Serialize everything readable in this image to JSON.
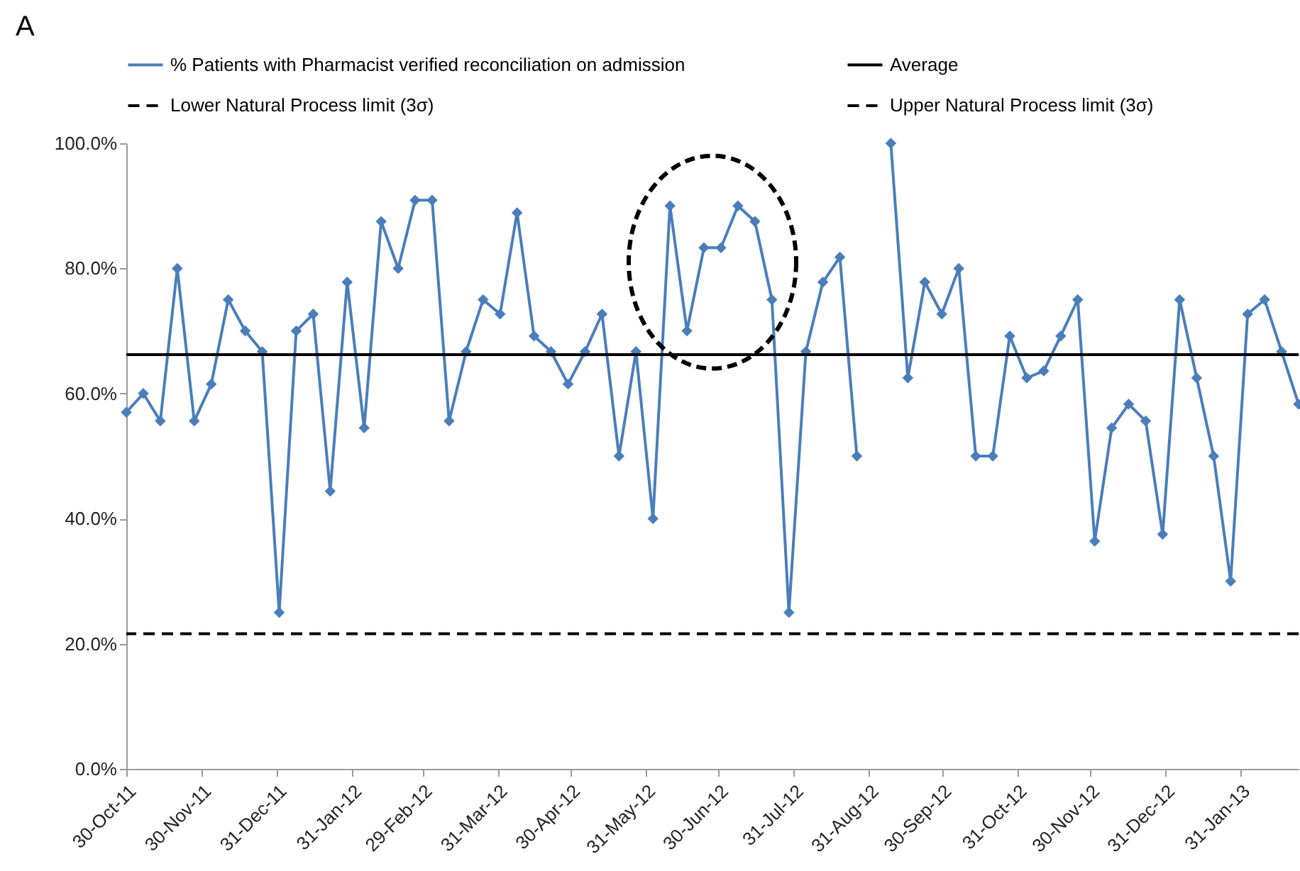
{
  "chart_data": {
    "type": "line",
    "annotations": [
      "A"
    ],
    "x": [
      "2011-10-30",
      "2011-11-06",
      "2011-11-13",
      "2011-11-20",
      "2011-11-27",
      "2011-12-04",
      "2011-12-11",
      "2011-12-18",
      "2011-12-25",
      "2012-01-01",
      "2012-01-08",
      "2012-01-15",
      "2012-01-22",
      "2012-01-29",
      "2012-02-05",
      "2012-02-12",
      "2012-02-19",
      "2012-02-26",
      "2012-03-04",
      "2012-03-11",
      "2012-03-18",
      "2012-03-25",
      "2012-04-01",
      "2012-04-08",
      "2012-04-15",
      "2012-04-22",
      "2012-04-29",
      "2012-05-06",
      "2012-05-13",
      "2012-05-20",
      "2012-05-27",
      "2012-06-03",
      "2012-06-10",
      "2012-06-17",
      "2012-06-24",
      "2012-07-01",
      "2012-07-08",
      "2012-07-15",
      "2012-07-22",
      "2012-07-29",
      "2012-08-05",
      "2012-08-12",
      "2012-08-19",
      "2012-08-26",
      "2012-09-02",
      "2012-09-09",
      "2012-09-16",
      "2012-09-23",
      "2012-09-30",
      "2012-10-07",
      "2012-10-14",
      "2012-10-21",
      "2012-10-28",
      "2012-11-04",
      "2012-11-11",
      "2012-11-18",
      "2012-11-25",
      "2012-12-02",
      "2012-12-09",
      "2012-12-16",
      "2012-12-23",
      "2012-12-30",
      "2013-01-06",
      "2013-01-13",
      "2013-01-20",
      "2013-01-27",
      "2013-02-03",
      "2013-02-10",
      "2013-02-17",
      "2013-02-24"
    ],
    "series": [
      {
        "name": "% Patients with Pharmacist verified reconciliation on admission",
        "color": "#4a7ebb",
        "values": [
          57.0,
          60.0,
          55.6,
          80.0,
          55.6,
          61.5,
          75.0,
          70.0,
          66.7,
          25.0,
          70.0,
          72.7,
          44.4,
          77.8,
          54.5,
          87.5,
          80.0,
          90.9,
          90.9,
          55.6,
          66.7,
          75.0,
          72.7,
          88.9,
          69.2,
          66.7,
          61.5,
          66.7,
          72.7,
          50.0,
          66.7,
          40.0,
          90.0,
          70.0,
          83.3,
          83.3,
          90.0,
          87.5,
          75.0,
          25.0,
          66.7,
          77.8,
          81.8,
          50.0,
          null,
          100,
          62.5,
          77.8,
          72.7,
          80.0,
          50.0,
          50.0,
          69.2,
          62.5,
          63.6,
          69.2,
          75.0,
          36.4,
          54.5,
          58.3,
          55.6,
          37.5,
          75.0,
          62.5,
          50.0,
          30.0,
          72.7,
          75.0,
          66.7,
          58.3
        ]
      }
    ],
    "marker": "diamond",
    "line_style": "solid",
    "legend": "top",
    "grid": false,
    "ref_lines": [
      {
        "axis": "y",
        "value": 66.2,
        "label": "Average",
        "color": "#000000",
        "line_style": "solid"
      },
      {
        "axis": "y",
        "value": 21.6,
        "label": "Lower Natural Process limit (3σ)",
        "color": "#000000",
        "line_style": "dashed"
      },
      {
        "axis": "y",
        "value": null,
        "label": "Upper Natural Process limit (3σ)",
        "color": "#000000",
        "line_style": "dashed"
      }
    ],
    "xlim": [
      "2011-10-30",
      "2013-02-24"
    ],
    "xticks": [
      {
        "value": "2011-10-30",
        "label": "30-Oct-11"
      },
      {
        "value": "2011-11-30",
        "label": "30-Nov-11"
      },
      {
        "value": "2011-12-31",
        "label": "31-Dec-11"
      },
      {
        "value": "2012-01-31",
        "label": "31-Jan-12"
      },
      {
        "value": "2012-02-29",
        "label": "29-Feb-12"
      },
      {
        "value": "2012-03-31",
        "label": "31-Mar-12"
      },
      {
        "value": "2012-04-30",
        "label": "30-Apr-12"
      },
      {
        "value": "2012-05-31",
        "label": "31-May-12"
      },
      {
        "value": "2012-06-30",
        "label": "30-Jun-12"
      },
      {
        "value": "2012-07-31",
        "label": "31-Jul-12"
      },
      {
        "value": "2012-08-31",
        "label": "31-Aug-12"
      },
      {
        "value": "2012-09-30",
        "label": "30-Sep-12"
      },
      {
        "value": "2012-10-31",
        "label": "31-Oct-12"
      },
      {
        "value": "2012-11-30",
        "label": "30-Nov-12"
      },
      {
        "value": "2012-12-31",
        "label": "31-Dec-12"
      },
      {
        "value": "2013-01-31",
        "label": "31-Jan-13"
      }
    ],
    "ylim": [
      0,
      100
    ],
    "yticks": [
      {
        "value": 0,
        "label": "0.0%"
      },
      {
        "value": 20,
        "label": "20.0%"
      },
      {
        "value": 40,
        "label": "40.0%"
      },
      {
        "value": 60,
        "label": "60.0%"
      },
      {
        "value": 80,
        "label": "80.0%"
      },
      {
        "value": 100,
        "label": "100.0%"
      }
    ]
  }
}
